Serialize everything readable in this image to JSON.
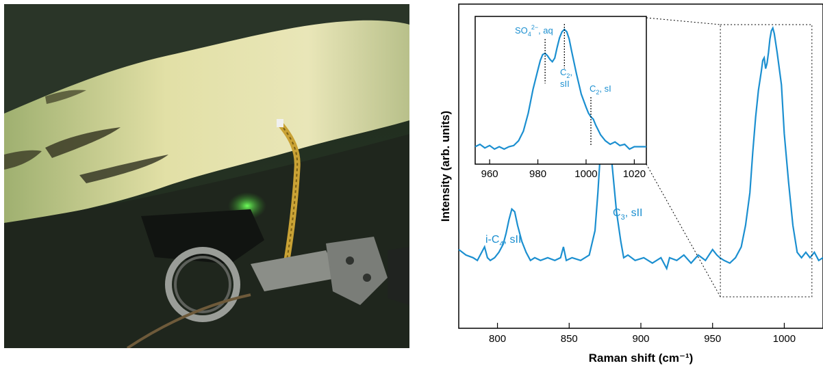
{
  "photo": {
    "description_icon": "seafloor-hydrate-photo"
  },
  "chart_data": [
    {
      "type": "line",
      "xlabel": "Raman shift (cm⁻¹)",
      "ylabel": "Intensity (arb. units)",
      "xlim": [
        773,
        1027
      ],
      "xticks": [
        800,
        850,
        900,
        950,
        1000
      ],
      "line_color": "#1b8fd0",
      "grid": false,
      "y_units": "arbitrary (0-100)",
      "series": [
        {
          "x": [
            773,
            778,
            783,
            786,
            789,
            791,
            793,
            795,
            798,
            801,
            804,
            806,
            808,
            810,
            812,
            814,
            817,
            820,
            823,
            826,
            830,
            835,
            840,
            844,
            846,
            848,
            852,
            858,
            864,
            868,
            870,
            872,
            874,
            876,
            878,
            880,
            883,
            886,
            888,
            891,
            896,
            902,
            908,
            914,
            918,
            920,
            925,
            930,
            935,
            940,
            945,
            950,
            953,
            955,
            958,
            962,
            966,
            970,
            973,
            976,
            978,
            980,
            982,
            984,
            985,
            986,
            987,
            988,
            989,
            990,
            991,
            992,
            993,
            995,
            998,
            1000,
            1003,
            1006,
            1009,
            1012,
            1015,
            1018,
            1021,
            1024,
            1027
          ],
          "y": [
            19,
            17,
            16,
            15,
            18,
            20,
            16,
            15,
            16,
            18,
            21,
            25,
            30,
            34,
            33,
            28,
            22,
            18,
            15,
            16,
            15,
            16,
            15,
            16,
            20,
            15,
            16,
            15,
            17,
            26,
            40,
            57,
            66,
            73,
            68,
            50,
            33,
            22,
            16,
            17,
            15,
            16,
            14,
            16,
            12,
            16,
            15,
            17,
            14,
            17,
            15,
            19,
            17,
            16,
            15,
            14,
            16,
            20,
            28,
            40,
            55,
            68,
            78,
            85,
            89,
            90,
            86,
            88,
            92,
            97,
            100,
            101,
            99,
            92,
            80,
            62,
            44,
            28,
            18,
            16,
            18,
            16,
            18,
            15,
            16
          ]
        }
      ],
      "annotations": [
        {
          "text": "i-C",
          "sub": "4",
          "rest": ", sII"
        },
        {
          "text": "C",
          "sub": "3",
          "rest": ", sII"
        }
      ]
    },
    {
      "type": "line",
      "xlim": [
        954,
        1025
      ],
      "xticks": [
        960,
        980,
        1000,
        1020
      ],
      "series": [
        {
          "x": [
            954,
            956,
            958,
            960,
            962,
            964,
            966,
            968,
            970,
            972,
            974,
            976,
            978,
            980,
            981,
            982,
            983,
            984,
            985,
            986,
            987,
            988,
            989,
            990,
            991,
            992,
            993,
            994,
            996,
            998,
            1000,
            1001,
            1002,
            1003,
            1004,
            1006,
            1008,
            1010,
            1012,
            1014,
            1016,
            1018,
            1020,
            1022,
            1025
          ],
          "y": [
            2,
            4,
            1,
            3,
            0,
            2,
            0,
            2,
            3,
            7,
            15,
            30,
            50,
            66,
            74,
            79,
            80,
            78,
            75,
            73,
            76,
            85,
            93,
            98,
            100,
            98,
            92,
            82,
            63,
            46,
            35,
            30,
            27,
            25,
            20,
            12,
            7,
            4,
            6,
            3,
            4,
            0,
            2,
            2,
            2
          ]
        }
      ],
      "annotations": [
        {
          "text": "SO",
          "sub": "4",
          "sup": "2−",
          "rest": ", aq",
          "x": 983
        },
        {
          "text": "C",
          "sub": "2",
          "rest": ",",
          "line2": "sII",
          "x": 991
        },
        {
          "text": "C",
          "sub": "2",
          "rest": ", sI",
          "x": 1002
        }
      ]
    }
  ]
}
